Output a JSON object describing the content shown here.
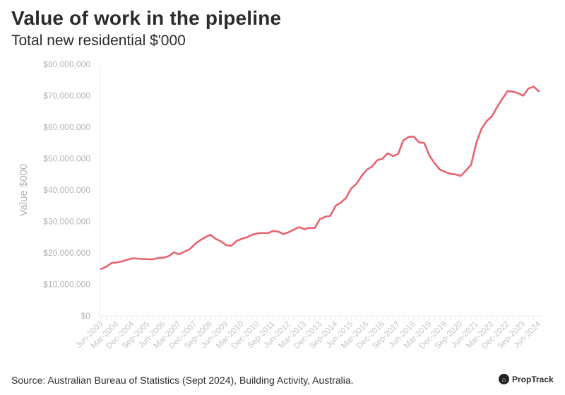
{
  "title": "Value of work in the pipeline",
  "subtitle": "Total new residential $'000",
  "source": "Source: Australian Bureau of Statistics (Sept 2024), Building Activity, Australia.",
  "logo": "PropTrack",
  "chart_data": {
    "type": "line",
    "ylabel": "Value $000",
    "xlabel": "",
    "ylim": [
      0,
      80000000
    ],
    "yticks": [
      0,
      10000000,
      20000000,
      30000000,
      40000000,
      50000000,
      60000000,
      70000000,
      80000000
    ],
    "ytick_labels": [
      "$0",
      "$10,000,000",
      "$20,000,000",
      "$30,000,000",
      "$40,000,000",
      "$50,000,000",
      "$60,000,000",
      "$70,000,000",
      "$80,000,000"
    ],
    "xtick_labels": [
      "Jun-2003",
      "Mar-2004",
      "Dec-2004",
      "Sep-2005",
      "Jun-2006",
      "Mar-2007",
      "Dec-2007",
      "Sep-2008",
      "Jun-2009",
      "Mar-2010",
      "Dec-2010",
      "Sep-2011",
      "Jun-2012",
      "Mar-2013",
      "Dec-2013",
      "Sep-2014",
      "Jun-2015",
      "Mar-2016",
      "Dec-2016",
      "Sep-2017",
      "Jun-2018",
      "Mar-2019",
      "Dec-2019",
      "Sep-2020",
      "Jun-2021",
      "Mar-2022",
      "Dec-2022",
      "Sep-2023",
      "Jun-2024"
    ],
    "x_start": "Jun-2003",
    "x_frequency": "quarterly",
    "grid": false,
    "line_color": "#e8636f",
    "values": [
      14900000,
      15600000,
      16800000,
      17000000,
      17300000,
      17800000,
      18300000,
      18200000,
      18100000,
      18000000,
      18000000,
      18400000,
      18500000,
      19000000,
      20200000,
      19600000,
      20400000,
      21200000,
      22800000,
      24000000,
      25000000,
      25800000,
      24500000,
      23700000,
      22500000,
      22300000,
      23800000,
      24500000,
      25000000,
      25800000,
      26200000,
      26400000,
      26300000,
      27000000,
      26800000,
      26000000,
      26600000,
      27400000,
      28200000,
      27600000,
      28000000,
      27900000,
      30800000,
      31500000,
      31800000,
      35000000,
      36000000,
      37500000,
      40500000,
      42000000,
      44500000,
      46500000,
      47500000,
      49500000,
      50000000,
      51700000,
      50800000,
      51500000,
      55800000,
      56900000,
      57000000,
      55200000,
      55000000,
      51000000,
      48500000,
      46500000,
      45800000,
      45200000,
      45000000,
      44500000,
      46200000,
      48000000,
      55000000,
      59500000,
      62000000,
      63500000,
      66500000,
      69000000,
      71500000,
      71300000,
      70800000,
      70000000,
      72300000,
      72900000,
      71400000
    ]
  }
}
